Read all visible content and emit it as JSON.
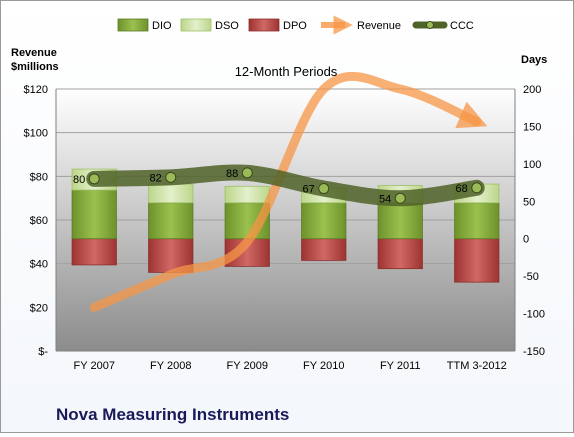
{
  "chart_data": {
    "type": "bar",
    "title": "12-Month Periods",
    "company": "Nova Measuring Instruments",
    "left_axis_label": [
      "Revenue",
      "$millions"
    ],
    "right_axis_label": "Days",
    "categories": [
      "FY 2007",
      "FY 2008",
      "FY 2009",
      "FY 2010",
      "FY 2011",
      "TTM 3-2012"
    ],
    "left_ticks": [
      "$-",
      "$20",
      "$40",
      "$60",
      "$80",
      "$100",
      "$120"
    ],
    "right_ticks": [
      "-150",
      "-100",
      "-50",
      "0",
      "50",
      "100",
      "150",
      "200"
    ],
    "left_ylim": [
      0,
      120
    ],
    "right_ylim": [
      -150,
      200
    ],
    "legend": [
      "DIO",
      "DSO",
      "DPO",
      "Revenue",
      "CCC"
    ],
    "legend_position": "top",
    "colors": {
      "DIO": "#7ea338",
      "DSO": "#d0e3a6",
      "DPO": "#c0504d",
      "Revenue": "#f79646",
      "CCC": "#4f6228"
    },
    "series": [
      {
        "name": "DIO",
        "values": [
          65,
          48,
          48,
          48,
          48,
          48
        ]
      },
      {
        "name": "DSO",
        "values": [
          28,
          25,
          22,
          20,
          23,
          25
        ]
      },
      {
        "name": "DPO",
        "values": [
          -35,
          -45,
          -37,
          -29,
          -40,
          -58
        ]
      },
      {
        "name": "CCC",
        "values": [
          80,
          82,
          88,
          67,
          54,
          68
        ]
      },
      {
        "name": "Revenue",
        "values": [
          20,
          35,
          50,
          120,
          120,
          105
        ]
      }
    ],
    "ccc_labels": [
      "80",
      "82",
      "88",
      "67",
      "54",
      "68"
    ]
  }
}
